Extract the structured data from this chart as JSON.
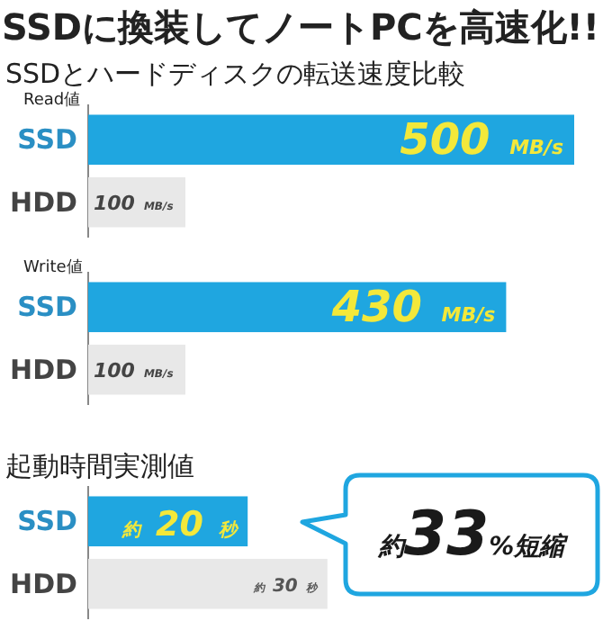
{
  "chart_data": [
    {
      "type": "bar",
      "orientation": "horizontal",
      "title": "SSDに換装してノートPCを高速化!!",
      "subtitle": "SSDとハードディスクの転送速度比較",
      "ylabel": "Read値",
      "categories": [
        "SSD",
        "HDD"
      ],
      "values": [
        500,
        100
      ],
      "colors": [
        "#1fa6e0",
        "#e8e8e8"
      ],
      "value_labels": [
        "500 MB/s",
        "100 MB/s"
      ]
    },
    {
      "type": "bar",
      "orientation": "horizontal",
      "ylabel": "Write値",
      "categories": [
        "SSD",
        "HDD"
      ],
      "values": [
        430,
        100
      ],
      "colors": [
        "#1fa6e0",
        "#e8e8e8"
      ],
      "value_labels": [
        "430 MB/s",
        "100 MB/s"
      ]
    },
    {
      "type": "bar",
      "orientation": "horizontal",
      "title": "起動時間実測値",
      "categories": [
        "SSD",
        "HDD"
      ],
      "values": [
        20,
        30
      ],
      "colors": [
        "#1fa6e0",
        "#e8e8e8"
      ],
      "value_labels": [
        "約 20 秒",
        "約 30 秒"
      ],
      "annotations": [
        "約33%短縮"
      ]
    }
  ]
}
